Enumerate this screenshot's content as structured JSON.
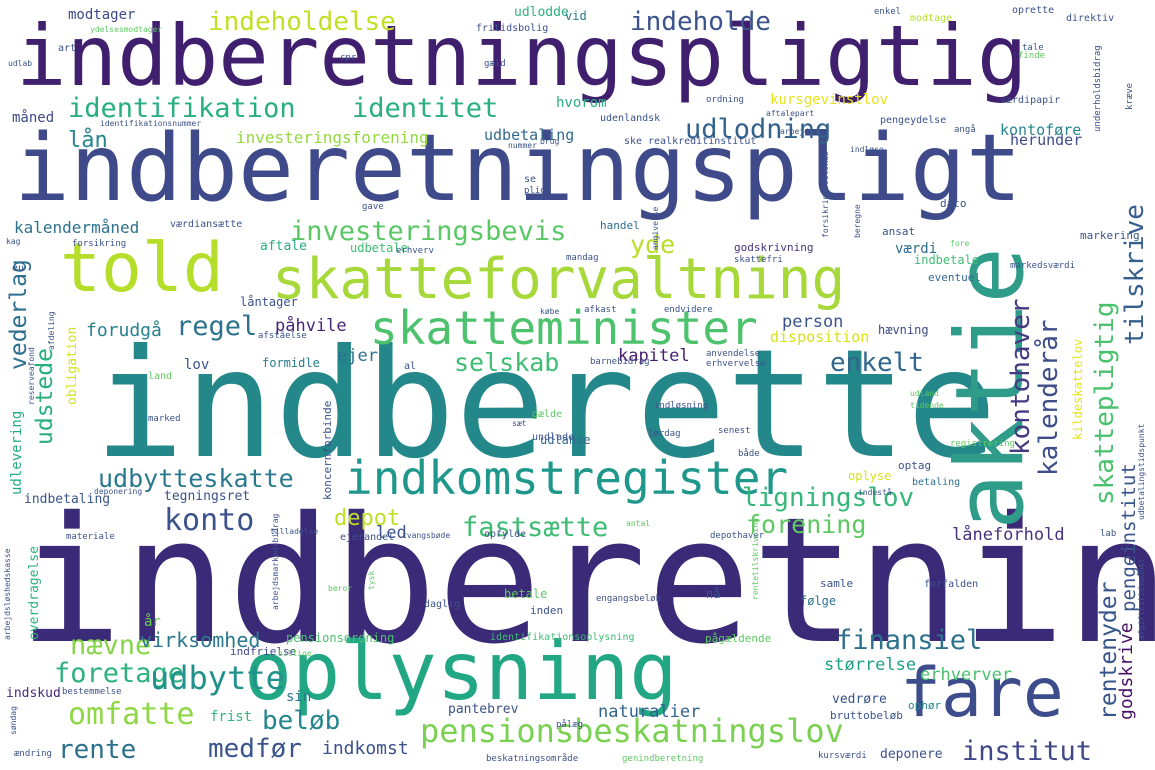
{
  "words": [
    {
      "id": "indberetning",
      "text": "indberetning",
      "color": "#3b2a78"
    },
    {
      "id": "indberette",
      "text": "indberette",
      "color": "#24878a"
    },
    {
      "id": "indberetningspligt",
      "text": "indberetningspligt",
      "color": "#3e4a89"
    },
    {
      "id": "indberetningspligtig",
      "text": "indberetningspligtig",
      "color": "#3f1f6e"
    },
    {
      "id": "oplysning",
      "text": "oplysning",
      "color": "#22a784"
    },
    {
      "id": "told",
      "text": "told",
      "color": "#b5de2b"
    },
    {
      "id": "skatteforvaltning",
      "text": "skatteforvaltning",
      "color": "#a7d839"
    },
    {
      "id": "aktie",
      "text": "aktie",
      "color": "#2f9c8a"
    },
    {
      "id": "fare",
      "text": "fare",
      "color": "#3d4c8a"
    },
    {
      "id": "skatteminister",
      "text": "skatteminister",
      "color": "#4cc26c"
    },
    {
      "id": "indkomstregister",
      "text": "indkomstregister",
      "color": "#1f988b"
    },
    {
      "id": "pensionsbeskatningslov",
      "text": "pensionsbeskatningslov",
      "color": "#7ad151"
    },
    {
      "id": "identifikation",
      "text": "identifikation",
      "color": "#29af7f"
    },
    {
      "id": "identitet",
      "text": "identitet",
      "color": "#2ab07f"
    },
    {
      "id": "udlodning",
      "text": "udlodning",
      "color": "#33638d"
    },
    {
      "id": "investeringsbevis",
      "text": "investeringsbevis",
      "color": "#5ac864"
    },
    {
      "id": "indeholdelse",
      "text": "indeholdelse",
      "color": "#c2df23"
    },
    {
      "id": "indeholde",
      "text": "indeholde",
      "color": "#3b528b"
    },
    {
      "id": "udbytteskatte",
      "text": "udbytteskatte",
      "color": "#2a788e"
    },
    {
      "id": "ligningslov",
      "text": "ligningslov",
      "color": "#35b779"
    },
    {
      "id": "konto",
      "text": "konto",
      "color": "#3b528b"
    },
    {
      "id": "fastsaette",
      "text": "fastsætte",
      "color": "#3fbc73"
    },
    {
      "id": "forening",
      "text": "forening",
      "color": "#5ec962"
    },
    {
      "id": "finansiel",
      "text": "finansiel",
      "color": "#2c728e"
    },
    {
      "id": "foretage",
      "text": "foretage",
      "color": "#2db27d"
    },
    {
      "id": "udbytte",
      "text": "udbytte",
      "color": "#21918c"
    },
    {
      "id": "omfatte",
      "text": "omfatte",
      "color": "#8fd744"
    },
    {
      "id": "rente",
      "text": "rente",
      "color": "#2d708e"
    },
    {
      "id": "medfoer",
      "text": "medfør",
      "color": "#3a548c"
    },
    {
      "id": "beloeb",
      "text": "beløb",
      "color": "#25858e"
    },
    {
      "id": "institut",
      "text": "institut",
      "color": "#3f4889"
    },
    {
      "id": "naevne",
      "text": "nævne",
      "color": "#86d549"
    },
    {
      "id": "regel",
      "text": "regel",
      "color": "#2c718e"
    },
    {
      "id": "selskab",
      "text": "selskab",
      "color": "#3fbc73"
    },
    {
      "id": "enkelt",
      "text": "enkelt",
      "color": "#31668e"
    },
    {
      "id": "yde",
      "text": "yde",
      "color": "#b8de29"
    },
    {
      "id": "depot",
      "text": "depot",
      "color": "#bddf26"
    },
    {
      "id": "laan",
      "text": "lån",
      "color": "#25848e"
    },
    {
      "id": "kontohaver",
      "text": "kontohaver",
      "color": "#443983"
    },
    {
      "id": "kalenderaar",
      "text": "kalenderår",
      "color": "#3e4c8a"
    },
    {
      "id": "skattepligtig",
      "text": "skattepligtig",
      "color": "#4ac16d"
    },
    {
      "id": "tilskrive",
      "text": "tilskrive",
      "color": "#355f8d"
    },
    {
      "id": "vederlag",
      "text": "vederlag",
      "color": "#2e6e8e"
    },
    {
      "id": "udstede",
      "text": "udstede",
      "color": "#29af7f"
    },
    {
      "id": "rentenyder",
      "text": "rentenyder",
      "color": "#39568c"
    },
    {
      "id": "pengeinstitut",
      "text": "pengeinstitut",
      "color": "#3a548c"
    },
    {
      "id": "godskrive",
      "text": "godskrive",
      "color": "#471164"
    },
    {
      "id": "virksomhed",
      "text": "virksomhed",
      "color": "#2a788e"
    },
    {
      "id": "naturalier",
      "text": "naturalier",
      "color": "#33638d"
    },
    {
      "id": "indkomst",
      "text": "indkomst",
      "color": "#3b528b"
    },
    {
      "id": "stoerrelse",
      "text": "størrelse",
      "color": "#1f9e89"
    },
    {
      "id": "erhverver",
      "text": "erhverver",
      "color": "#4ac16d"
    },
    {
      "id": "kapitel",
      "text": "kapitel",
      "color": "#481d6f"
    },
    {
      "id": "person",
      "text": "person",
      "color": "#3a548c"
    },
    {
      "id": "disposition",
      "text": "disposition",
      "color": "#d8e219"
    },
    {
      "id": "forudgaa",
      "text": "forudgå",
      "color": "#26818e"
    },
    {
      "id": "paahvile",
      "text": "påhvile",
      "color": "#482576"
    },
    {
      "id": "ejer",
      "text": "ejer",
      "color": "#2c728e"
    },
    {
      "id": "led",
      "text": "led",
      "color": "#3b528b"
    },
    {
      "id": "laaneforhold",
      "text": "låneforhold",
      "color": "#46337f"
    },
    {
      "id": "kalendermaaned",
      "text": "kalendermåned",
      "color": "#2c728e"
    },
    {
      "id": "investeringsforening",
      "text": "investeringsforening",
      "color": "#95d840"
    },
    {
      "id": "udbetaling",
      "text": "udbetaling",
      "color": "#31688e"
    },
    {
      "id": "kontofoere",
      "text": "kontoføre",
      "color": "#25848e"
    },
    {
      "id": "herunder",
      "text": "herunder",
      "color": "#3e4a89"
    },
    {
      "id": "maaned",
      "text": "måned",
      "color": "#3e4a89"
    },
    {
      "id": "hvorom",
      "text": "hvorom",
      "color": "#29af7f"
    },
    {
      "id": "kursgevinstlov",
      "text": "kursgevinstlov",
      "color": "#e5e419"
    },
    {
      "id": "modtager",
      "text": "modtager",
      "color": "#3e4a89"
    },
    {
      "id": "udlodde",
      "text": "udlodde",
      "color": "#2db27d"
    },
    {
      "id": "vid",
      "text": "vid",
      "color": "#2a788e"
    },
    {
      "id": "vaerdi",
      "text": "værdi",
      "color": "#2e6e8e"
    },
    {
      "id": "lov",
      "text": "lov",
      "color": "#3b528b"
    },
    {
      "id": "formidle",
      "text": "formidle",
      "color": "#287c8e"
    },
    {
      "id": "udlevering",
      "text": "udlevering",
      "color": "#25ab82"
    },
    {
      "id": "indbetaling",
      "text": "indbetaling",
      "color": "#3a548c"
    },
    {
      "id": "tegningsret",
      "text": "tegningsret",
      "color": "#3b528b"
    },
    {
      "id": "aar",
      "text": "år",
      "color": "#6ece58"
    },
    {
      "id": "sin",
      "text": "sin",
      "color": "#2a768e"
    },
    {
      "id": "frist",
      "text": "frist",
      "color": "#35b779"
    },
    {
      "id": "pantebrev",
      "text": "pantebrev",
      "color": "#3b528b"
    },
    {
      "id": "vedroere",
      "text": "vedrøre",
      "color": "#3b528b"
    },
    {
      "id": "deponere",
      "text": "deponere",
      "color": "#3b528b"
    },
    {
      "id": "indskud",
      "text": "indskud",
      "color": "#482878"
    },
    {
      "id": "pensionsordning",
      "text": "pensionsordning",
      "color": "#4ac16d"
    },
    {
      "id": "indfrielse",
      "text": "indfrielse",
      "color": "#3e4a89"
    },
    {
      "id": "identifikationsoplysning",
      "text": "identifikationsoplysning",
      "color": "#3fbc73"
    },
    {
      "id": "paagaeldende",
      "text": "pågældende",
      "color": "#5ec962"
    },
    {
      "id": "oplyse",
      "text": "oplyse",
      "color": "#d8e219"
    },
    {
      "id": "udlande",
      "text": "udlande",
      "color": "#31688e"
    },
    {
      "id": "aftale",
      "text": "aftale",
      "color": "#26ad81"
    },
    {
      "id": "udbetale",
      "text": "udbetale",
      "color": "#3fbc73"
    },
    {
      "id": "godskrivning",
      "text": "godskrivning",
      "color": "#46337f"
    },
    {
      "id": "indbetale",
      "text": "indbetale",
      "color": "#3fbc73"
    },
    {
      "id": "eventuel",
      "text": "eventuel",
      "color": "#31688e"
    },
    {
      "id": "haevning",
      "text": "hævning",
      "color": "#3e4a89"
    },
    {
      "id": "markering",
      "text": "markering",
      "color": "#3b528b"
    },
    {
      "id": "optag",
      "text": "optag",
      "color": "#3b528b"
    },
    {
      "id": "betaling",
      "text": "betaling",
      "color": "#2c718e"
    },
    {
      "id": "faelge",
      "text": "følge",
      "color": "#2c728e"
    },
    {
      "id": "samle",
      "text": "samle",
      "color": "#3b528b"
    },
    {
      "id": "betale",
      "text": "betale",
      "color": "#5ec962"
    },
    {
      "id": "inden",
      "text": "inden",
      "color": "#3b528b"
    },
    {
      "id": "naa",
      "text": "nå",
      "color": "#3b528b"
    },
    {
      "id": "ophoer",
      "text": "ophør",
      "color": "#24878e"
    },
    {
      "id": "bruttobeloeb",
      "text": "bruttobeløb",
      "color": "#3b528b"
    },
    {
      "id": "opfylde",
      "text": "opfylde",
      "color": "#3b528b"
    },
    {
      "id": "ejerandel",
      "text": "ejerandel",
      "color": "#3b528b"
    },
    {
      "id": "daglig",
      "text": "daglig",
      "color": "#3b528b"
    },
    {
      "id": "obligation",
      "text": "obligation",
      "color": "#d2e21b"
    },
    {
      "id": "ansat",
      "text": "ansat",
      "color": "#3b528b"
    },
    {
      "id": "dato",
      "text": "dato",
      "color": "#3b528b"
    },
    {
      "id": "handel",
      "text": "handel",
      "color": "#2e6e8e"
    },
    {
      "id": "vaerdiansaette",
      "text": "værdiansætte",
      "color": "#3b528b"
    },
    {
      "id": "kildeskattelov",
      "text": "kildeskattelov",
      "color": "#e5e419"
    },
    {
      "id": "laantager",
      "text": "låntager",
      "color": "#3b528b"
    },
    {
      "id": "koncernforbinde",
      "text": "koncernforbinde",
      "color": "#3b528b"
    },
    {
      "id": "overdragelse",
      "text": "overdragelse",
      "color": "#2db27d"
    },
    {
      "id": "modtage",
      "text": "modtage",
      "color": "#b5de2b"
    },
    {
      "id": "oprette",
      "text": "oprette",
      "color": "#3b528b"
    },
    {
      "id": "direktiv",
      "text": "direktiv",
      "color": "#3b528b"
    },
    {
      "id": "fritidsbolig",
      "text": "fritidsbolig",
      "color": "#3b528b"
    },
    {
      "id": "udenlandsk",
      "text": "udenlandsk",
      "color": "#3b528b"
    },
    {
      "id": "vaerdipapir",
      "text": "værdipapir",
      "color": "#3b528b"
    },
    {
      "id": "pengeydelse",
      "text": "pengeydelse",
      "color": "#3b528b"
    },
    {
      "id": "realkreditinstitut",
      "text": "realkreditinstitut",
      "color": "#3b528b"
    },
    {
      "id": "ske",
      "text": "ske",
      "color": "#3b528b"
    },
    {
      "id": "se",
      "text": "se",
      "color": "#3b528b"
    },
    {
      "id": "art",
      "text": "art",
      "color": "#3b528b"
    },
    {
      "id": "enkel",
      "text": "enkel",
      "color": "#3b528b"
    },
    {
      "id": "tale",
      "text": "tale",
      "color": "#3b528b"
    },
    {
      "id": "cpr",
      "text": "cpr",
      "color": "#3b528b"
    },
    {
      "id": "gaeld",
      "text": "gæld",
      "color": "#3b528b"
    },
    {
      "id": "ordning",
      "text": "ordning",
      "color": "#3b528b"
    },
    {
      "id": "angaa",
      "text": "angå",
      "color": "#3b528b"
    },
    {
      "id": "finde",
      "text": "finde",
      "color": "#5ec962"
    },
    {
      "id": "gave",
      "text": "gave",
      "color": "#3b528b"
    },
    {
      "id": "pligt",
      "text": "pligt",
      "color": "#3b528b"
    },
    {
      "id": "forsikring",
      "text": "forsikring",
      "color": "#3b528b"
    },
    {
      "id": "erhverv",
      "text": "erhverv",
      "color": "#3b528b"
    },
    {
      "id": "mandag",
      "text": "mandag",
      "color": "#3b528b"
    },
    {
      "id": "skattefri",
      "text": "skattefri",
      "color": "#3b528b"
    },
    {
      "id": "markedsvaerdi",
      "text": "markedsværdi",
      "color": "#3b528b"
    },
    {
      "id": "eu",
      "text": "eu",
      "color": "#3b528b"
    },
    {
      "id": "land",
      "text": "land",
      "color": "#5ec962"
    },
    {
      "id": "marked",
      "text": "marked",
      "color": "#3b528b"
    },
    {
      "id": "gaelde",
      "text": "gælde",
      "color": "#5ec962"
    },
    {
      "id": "undlade",
      "text": "undlade",
      "color": "#3b528b"
    },
    {
      "id": "indloesning",
      "text": "indløsning",
      "color": "#3b528b"
    },
    {
      "id": "laerdag",
      "text": "lørdag",
      "color": "#3b528b"
    },
    {
      "id": "senest",
      "text": "senest",
      "color": "#3b528b"
    },
    {
      "id": "baade",
      "text": "både",
      "color": "#3b528b"
    },
    {
      "id": "registrering",
      "text": "registrering",
      "color": "#5ec962"
    },
    {
      "id": "depothaver",
      "text": "depothaver",
      "color": "#3b528b"
    },
    {
      "id": "forfalden",
      "text": "forfalden",
      "color": "#3b528b"
    },
    {
      "id": "engangsbeloeb",
      "text": "engangsbeløb",
      "color": "#3b528b"
    },
    {
      "id": "materiale",
      "text": "materiale",
      "color": "#3b528b"
    },
    {
      "id": "afkast",
      "text": "afkast",
      "color": "#3b528b"
    },
    {
      "id": "endvidere",
      "text": "endvidere",
      "color": "#3b528b"
    },
    {
      "id": "koebe",
      "text": "købe",
      "color": "#3b528b"
    },
    {
      "id": "anvendelse",
      "text": "anvendelse",
      "color": "#3b528b"
    },
    {
      "id": "erhvervelse",
      "text": "erhvervelse",
      "color": "#3b528b"
    },
    {
      "id": "barnebidrag",
      "text": "barnebidrag",
      "color": "#3b528b"
    },
    {
      "id": "afstaaelse",
      "text": "afståelse",
      "color": "#3b528b"
    },
    {
      "id": "al",
      "text": "al",
      "color": "#3b528b"
    },
    {
      "id": "bestemmelse",
      "text": "bestemmelse",
      "color": "#3b528b"
    },
    {
      "id": "paalaeg",
      "text": "pålæg",
      "color": "#3b528b"
    },
    {
      "id": "aendring",
      "text": "ændring",
      "color": "#3b528b"
    },
    {
      "id": "sandag",
      "text": "søndag",
      "color": "#3b528b"
    },
    {
      "id": "tvangsbode",
      "text": "tvangsbøde",
      "color": "#3b528b"
    },
    {
      "id": "beskatningsomraade",
      "text": "beskatningsområde",
      "color": "#3b528b"
    },
    {
      "id": "genindberetning",
      "text": "genindberetning",
      "color": "#5ec962"
    },
    {
      "id": "kursvaerdi",
      "text": "kursværdi",
      "color": "#3b528b"
    },
    {
      "id": "indestaa",
      "text": "indestå",
      "color": "#3b528b"
    },
    {
      "id": "lab",
      "text": "lab",
      "color": "#3b528b"
    },
    {
      "id": "kraeve",
      "text": "kræve",
      "color": "#3b528b"
    },
    {
      "id": "udlab",
      "text": "udlab",
      "color": "#3b528b"
    },
    {
      "id": "angivelse",
      "text": "angivelse",
      "color": "#3b528b"
    },
    {
      "id": "udland",
      "text": "udland",
      "color": "#5ec962"
    },
    {
      "id": "tidende",
      "text": "tidende",
      "color": "#5ec962"
    },
    {
      "id": "saet",
      "text": "sæt",
      "color": "#3b528b"
    },
    {
      "id": "indloese",
      "text": "indløse",
      "color": "#3b528b"
    },
    {
      "id": "nummer",
      "text": "nummer",
      "color": "#3b528b"
    },
    {
      "id": "brug",
      "text": "brug",
      "color": "#3b528b"
    },
    {
      "id": "arbejde",
      "text": "arbejde",
      "color": "#3b528b"
    },
    {
      "id": "aftalepart",
      "text": "aftalepart",
      "color": "#3b528b"
    },
    {
      "id": "underholdsbidrag",
      "text": "underholdsbidrag",
      "color": "#3b528b"
    },
    {
      "id": "identifikationsnummer",
      "text": "identifikationsnummer",
      "color": "#3b528b"
    },
    {
      "id": "ydelsesmodtager",
      "text": "ydelsesmodtager",
      "color": "#5ec962"
    },
    {
      "id": "forsikringsselskab",
      "text": "forsikringsselskab",
      "color": "#3b528b"
    },
    {
      "id": "beregne",
      "text": "beregne",
      "color": "#3b528b"
    },
    {
      "id": "reserveafond",
      "text": "reserveafond",
      "color": "#3b528b"
    },
    {
      "id": "afdeling",
      "text": "afdeling",
      "color": "#3b528b"
    },
    {
      "id": "deponering",
      "text": "deponering",
      "color": "#3b528b"
    },
    {
      "id": "antal",
      "text": "antal",
      "color": "#5ec962"
    },
    {
      "id": "tilladelse",
      "text": "tilladelse",
      "color": "#3b528b"
    },
    {
      "id": "arbejdsmarkedsbidrag",
      "text": "arbejdsmarkedsbidrag",
      "color": "#3b528b"
    },
    {
      "id": "rentetilskrivning",
      "text": "rentetilskrivning",
      "color": "#5ec962"
    },
    {
      "id": "arbejdsloeshedskasse",
      "text": "arbejdsløshedskasse",
      "color": "#3b528b"
    },
    {
      "id": "udbetalingstidspunkt",
      "text": "udbetalingstidspunkt",
      "color": "#3b528b"
    },
    {
      "id": "afgiftsstidspunkt",
      "text": "afgiftsstidspunkt",
      "color": "#3b528b"
    },
    {
      "id": "tysk",
      "text": "tysk",
      "color": "#5ec962"
    },
    {
      "id": "beror",
      "text": "beror",
      "color": "#5ec962"
    },
    {
      "id": "billige",
      "text": "billige",
      "color": "#5ec962"
    },
    {
      "id": "kag",
      "text": "kag",
      "color": "#3b528b"
    },
    {
      "id": "fore",
      "text": "fore",
      "color": "#5ec962"
    }
  ]
}
